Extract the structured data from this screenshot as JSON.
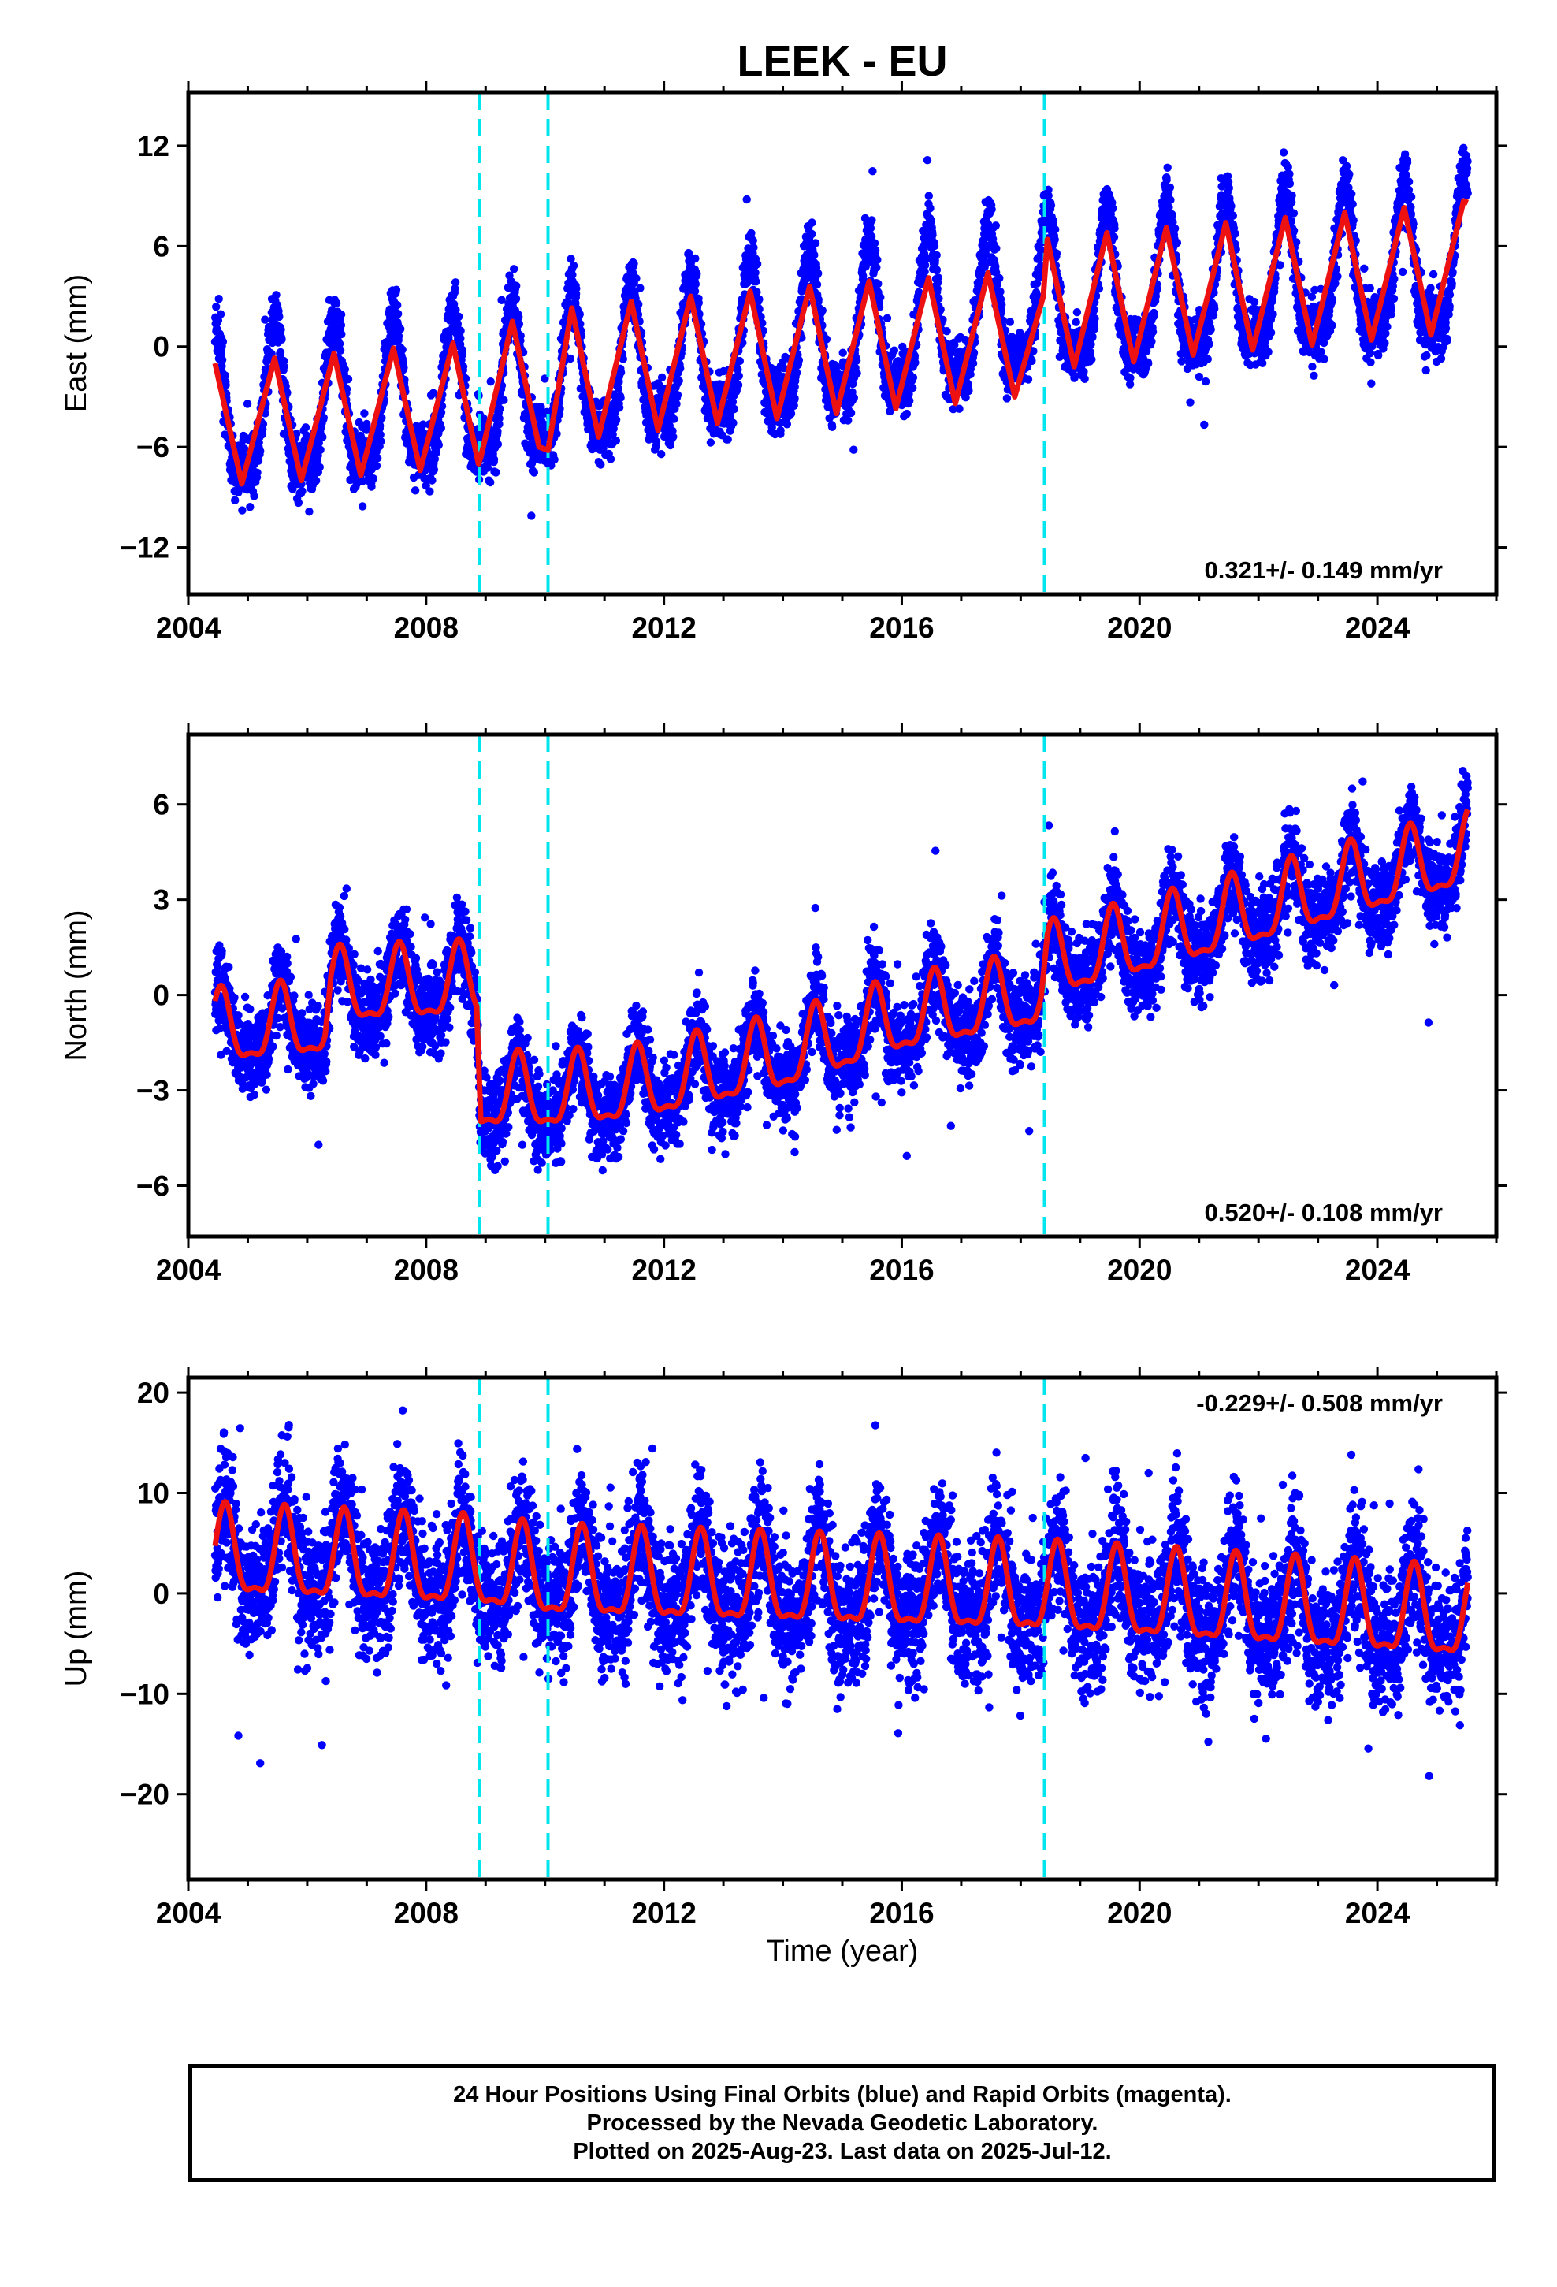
{
  "title": "LEEK - EU",
  "x_axis_label": "Time (year)",
  "colors": {
    "points": "#0000ff",
    "model": "#ee1111",
    "offset_lines": "#00e5ee",
    "frame": "#000000"
  },
  "caption": {
    "line1": "24 Hour Positions Using Final Orbits (blue) and Rapid Orbits (magenta).",
    "line2": "Processed by the Nevada Geodetic Laboratory.",
    "line3": "Plotted on 2025-Aug-23. Last data on 2025-Jul-12."
  },
  "chart_data": [
    {
      "type": "scatter",
      "component": "east",
      "ylabel": "East (mm)",
      "xlabel": "",
      "xlim": [
        2004.0,
        2026.0
      ],
      "ylim": [
        -14.8,
        15.2
      ],
      "x_ticks": [
        2004,
        2008,
        2012,
        2016,
        2020,
        2024
      ],
      "y_ticks": [
        -12,
        -6,
        0,
        6,
        12
      ],
      "rate_label": "0.321+/- 0.149 mm/yr",
      "rate_label_position": "bottom-right",
      "offsets": [
        2008.9,
        2010.05,
        2018.4
      ],
      "data_span": [
        2004.45,
        2025.52
      ],
      "model": {
        "points": [
          [
            2004.45,
            -1.0
          ],
          [
            2004.9,
            -8.2
          ],
          [
            2005.45,
            -0.7
          ],
          [
            2005.9,
            -8.0
          ],
          [
            2006.45,
            -0.4
          ],
          [
            2006.9,
            -7.7
          ],
          [
            2007.45,
            -0.1
          ],
          [
            2007.9,
            -7.4
          ],
          [
            2008.45,
            0.2
          ],
          [
            2008.88,
            -7.0
          ],
          [
            2008.92,
            -6.6
          ],
          [
            2009.45,
            1.5
          ],
          [
            2009.9,
            -6.0
          ],
          [
            2010.05,
            -6.2
          ],
          [
            2010.45,
            2.3
          ],
          [
            2010.9,
            -5.4
          ],
          [
            2011.45,
            2.7
          ],
          [
            2011.9,
            -5.0
          ],
          [
            2012.45,
            3.0
          ],
          [
            2012.9,
            -4.6
          ],
          [
            2013.45,
            3.3
          ],
          [
            2013.9,
            -4.3
          ],
          [
            2014.45,
            3.6
          ],
          [
            2014.9,
            -4.0
          ],
          [
            2015.45,
            3.9
          ],
          [
            2015.9,
            -3.7
          ],
          [
            2016.45,
            4.1
          ],
          [
            2016.9,
            -3.4
          ],
          [
            2017.45,
            4.4
          ],
          [
            2017.9,
            -3.0
          ],
          [
            2018.38,
            3.0
          ],
          [
            2018.45,
            6.4
          ],
          [
            2018.9,
            -1.2
          ],
          [
            2019.45,
            6.8
          ],
          [
            2019.9,
            -0.9
          ],
          [
            2020.45,
            7.1
          ],
          [
            2020.9,
            -0.5
          ],
          [
            2021.45,
            7.4
          ],
          [
            2021.9,
            -0.2
          ],
          [
            2022.45,
            7.7
          ],
          [
            2022.9,
            0.1
          ],
          [
            2023.45,
            8.0
          ],
          [
            2023.9,
            0.4
          ],
          [
            2024.45,
            8.3
          ],
          [
            2024.9,
            0.7
          ],
          [
            2025.45,
            8.7
          ],
          [
            2025.52,
            8.6
          ]
        ],
        "baseline": [
          [
            2004.45,
            -4.5
          ],
          [
            2008.9,
            -3.2
          ],
          [
            2010.05,
            -2.5
          ],
          [
            2018.4,
            2.4
          ],
          [
            2025.52,
            4.6
          ]
        ],
        "amplitude": 4.2,
        "noise": 1.25,
        "phase_year_peak": 0.45
      }
    },
    {
      "type": "scatter",
      "component": "north",
      "ylabel": "North (mm)",
      "xlabel": "",
      "xlim": [
        2004.0,
        2026.0
      ],
      "ylim": [
        -7.6,
        8.2
      ],
      "x_ticks": [
        2004,
        2008,
        2012,
        2016,
        2020,
        2024
      ],
      "y_ticks": [
        -6,
        -3,
        0,
        3,
        6
      ],
      "rate_label": "0.520+/- 0.108 mm/yr",
      "rate_label_position": "bottom-right",
      "offsets": [
        2008.9,
        2010.05,
        2018.4
      ],
      "data_span": [
        2004.45,
        2025.52
      ],
      "model": {
        "baseline": [
          [
            2004.45,
            -1.2
          ],
          [
            2006.3,
            -0.9
          ],
          [
            2006.4,
            0.1
          ],
          [
            2008.85,
            0.3
          ],
          [
            2008.92,
            -3.2
          ],
          [
            2010.05,
            -3.2
          ],
          [
            2011.5,
            -3.0
          ],
          [
            2014.0,
            -2.0
          ],
          [
            2016.0,
            -0.8
          ],
          [
            2018.35,
            0.0
          ],
          [
            2018.45,
            0.9
          ],
          [
            2020.0,
            1.6
          ],
          [
            2022.0,
            2.6
          ],
          [
            2023.3,
            3.3
          ],
          [
            2025.52,
            4.4
          ]
        ],
        "amplitude": 1.1,
        "noise": 0.95,
        "phase_year_peak": 0.55
      }
    },
    {
      "type": "scatter",
      "component": "up",
      "ylabel": "Up (mm)",
      "xlabel": "Time (year)",
      "xlim": [
        2004.0,
        2026.0
      ],
      "ylim": [
        -28.5,
        21.5
      ],
      "x_ticks": [
        2004,
        2008,
        2012,
        2016,
        2020,
        2024
      ],
      "y_ticks": [
        -20,
        -10,
        0,
        10,
        20
      ],
      "rate_label": "-0.229+/- 0.508 mm/yr",
      "rate_label_position": "top-right",
      "offsets": [
        2008.9,
        2010.05,
        2018.4
      ],
      "data_span": [
        2004.45,
        2025.52
      ],
      "model": {
        "baseline": [
          [
            2004.45,
            3.5
          ],
          [
            2008.9,
            2.3
          ],
          [
            2010.05,
            1.4
          ],
          [
            2018.4,
            -0.2
          ],
          [
            2025.52,
            -2.8
          ]
        ],
        "amplitude": 4.2,
        "noise": 4.6,
        "phase_year_peak": 0.62
      }
    }
  ]
}
